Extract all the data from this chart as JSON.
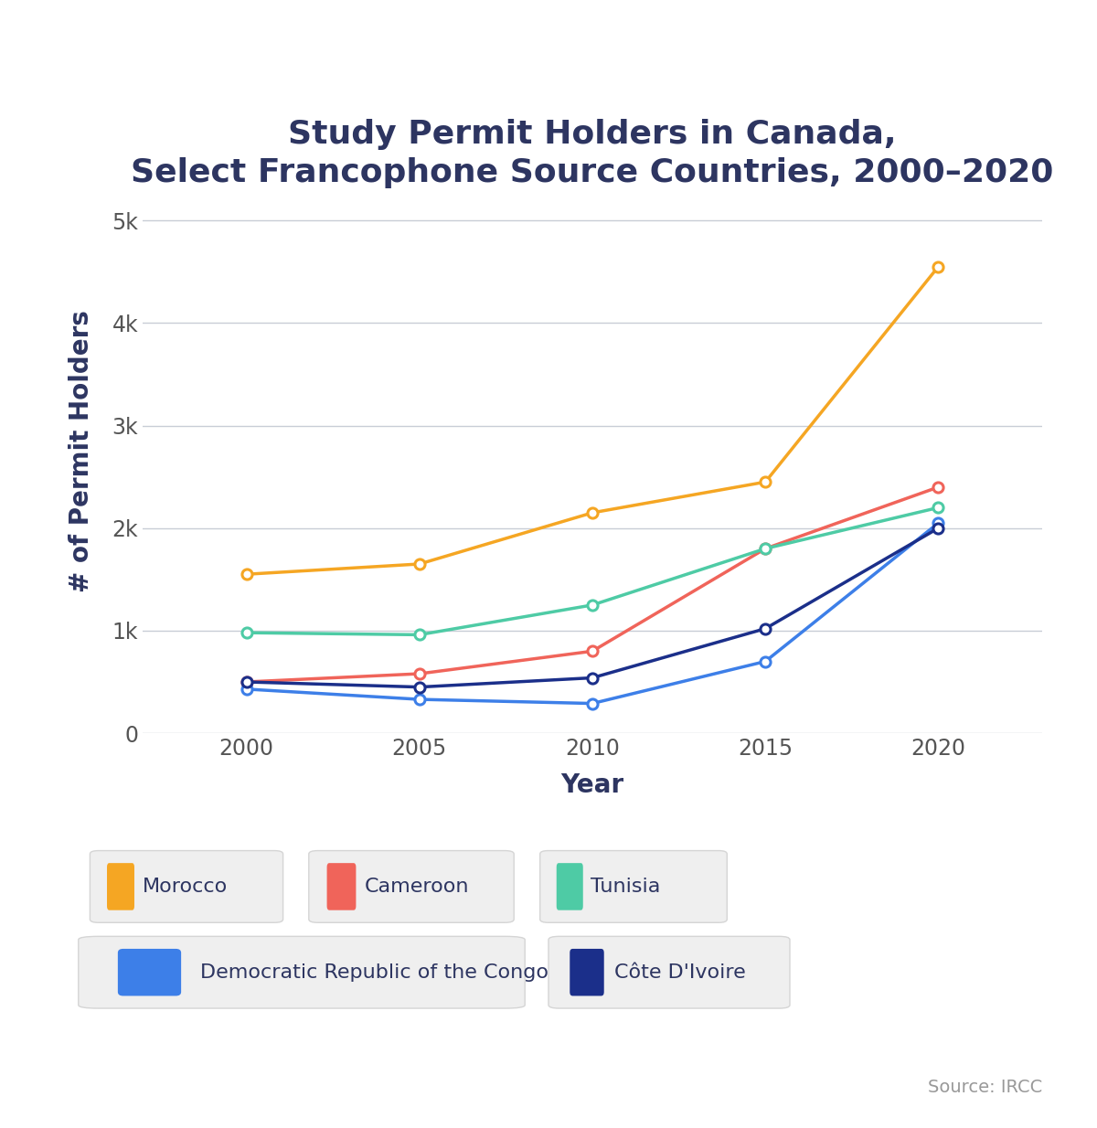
{
  "title": "Study Permit Holders in Canada,\nSelect Francophone Source Countries, 2000–2020",
  "xlabel": "Year",
  "ylabel": "# of Permit Holders",
  "years": [
    2000,
    2005,
    2010,
    2015,
    2020
  ],
  "series": [
    {
      "label": "Morocco",
      "color": "#F5A623",
      "values": [
        1550,
        1650,
        2150,
        2450,
        4550
      ]
    },
    {
      "label": "Cameroon",
      "color": "#F0645A",
      "values": [
        500,
        580,
        800,
        1800,
        2400
      ]
    },
    {
      "label": "Tunisia",
      "color": "#4ECBA5",
      "values": [
        980,
        960,
        1250,
        1800,
        2200
      ]
    },
    {
      "label": "Democratic Republic of the Congo",
      "color": "#3D7FE8",
      "values": [
        430,
        330,
        290,
        700,
        2050
      ]
    },
    {
      "label": "Côte D'Ivoire",
      "color": "#1B2F8A",
      "values": [
        500,
        450,
        540,
        1020,
        2000
      ]
    }
  ],
  "ylim": [
    0,
    5500
  ],
  "yticks": [
    0,
    1000,
    2000,
    3000,
    4000,
    5000
  ],
  "ytick_labels": [
    "0",
    "1k",
    "2k",
    "3k",
    "4k",
    "5k"
  ],
  "background_color": "#ffffff",
  "grid_color": "#c8cdd6",
  "title_color": "#2d3561",
  "axis_label_color": "#2d3561",
  "tick_color": "#555555",
  "source_text": "Source: IRCC",
  "title_fontsize": 26,
  "axis_label_fontsize": 20,
  "tick_fontsize": 17,
  "legend_fontsize": 16,
  "source_fontsize": 14,
  "marker_size": 8,
  "line_width": 2.5,
  "legend_box_color": "#efefef",
  "legend_box_edge_color": "#d5d5d5",
  "legend_row1_labels": [
    "Morocco",
    "Cameroon",
    "Tunisia"
  ],
  "legend_row1_colors": [
    "#F5A623",
    "#F0645A",
    "#4ECBA5"
  ],
  "legend_row2_labels": [
    "Democratic Republic of the Congo",
    "Côte D'Ivoire"
  ],
  "legend_row2_colors": [
    "#3D7FE8",
    "#1B2F8A"
  ]
}
